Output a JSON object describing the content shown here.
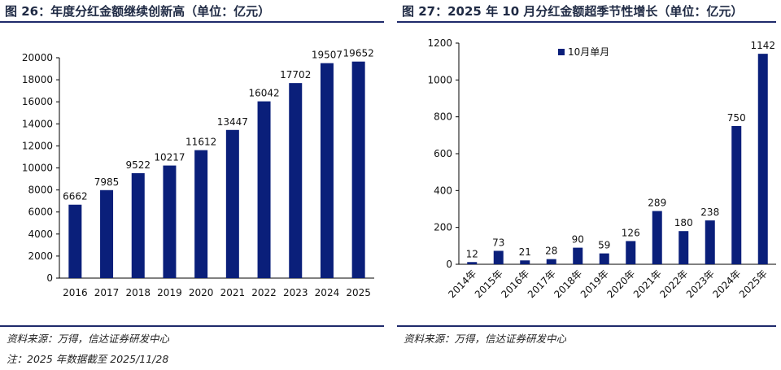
{
  "left": {
    "title": "图 26：年度分红金额继续创新高（单位：亿元）",
    "source": "资料来源：万得，信达证券研发中心",
    "note": "注：2025 年数据截至 2025/11/28"
  },
  "right": {
    "title": "图 27：2025 年 10 月分红金额超季节性增长（单位：亿元）",
    "source": "资料来源：万得，信达证券研发中心"
  },
  "colors": {
    "bar": "#0a1f7a",
    "axis": "#000000",
    "rule": "#1f2a6b"
  },
  "chart_data": [
    {
      "type": "bar",
      "title": "年度分红金额继续创新高（单位：亿元）",
      "categories": [
        "2016",
        "2017",
        "2018",
        "2019",
        "2020",
        "2021",
        "2022",
        "2023",
        "2024",
        "2025"
      ],
      "values": [
        6662,
        7985,
        9522,
        10217,
        11612,
        13447,
        16042,
        17702,
        19507,
        19652
      ],
      "ylim": [
        0,
        20000
      ],
      "yticks": [
        0,
        2000,
        4000,
        6000,
        8000,
        10000,
        12000,
        14000,
        16000,
        18000,
        20000
      ],
      "xlabel": "",
      "ylabel": "",
      "grid": false
    },
    {
      "type": "bar",
      "title": "2025 年 10 月分红金额超季节性增长（单位：亿元）",
      "categories": [
        "2014年",
        "2015年",
        "2016年",
        "2017年",
        "2018年",
        "2019年",
        "2020年",
        "2021年",
        "2022年",
        "2023年",
        "2024年",
        "2025年"
      ],
      "series": [
        {
          "name": "10月单月",
          "values": [
            12,
            73,
            21,
            28,
            90,
            59,
            126,
            289,
            180,
            238,
            750,
            1142
          ]
        }
      ],
      "ylim": [
        0,
        1200
      ],
      "yticks": [
        0,
        200,
        400,
        600,
        800,
        1000,
        1200
      ],
      "legend": "top-center",
      "xlabel": "",
      "ylabel": "",
      "grid": false
    }
  ]
}
